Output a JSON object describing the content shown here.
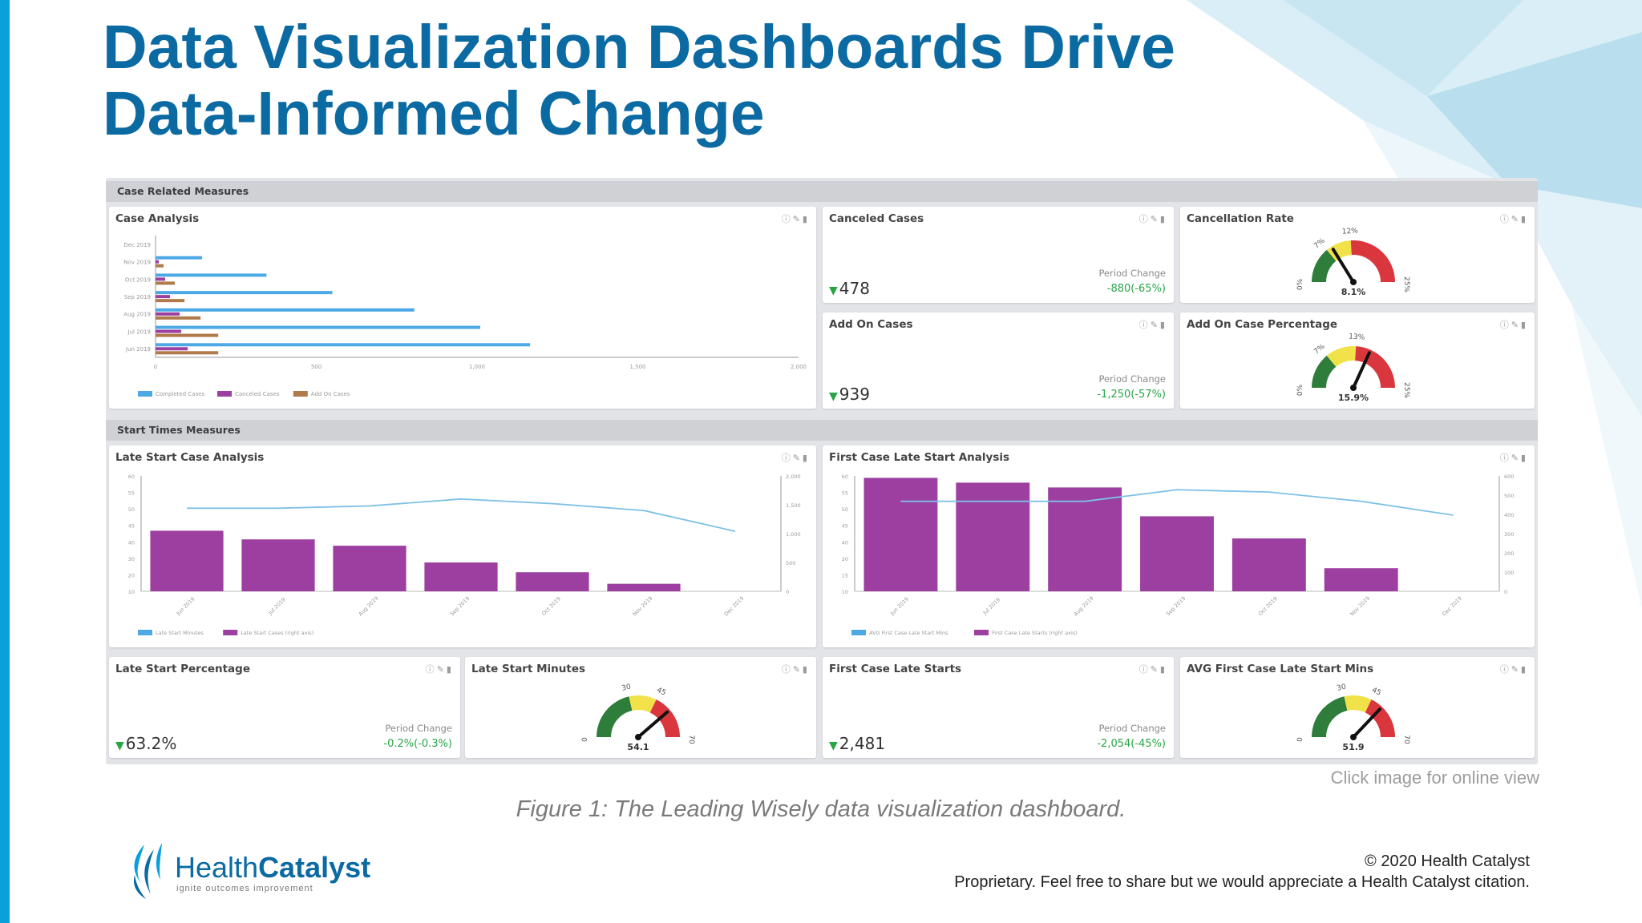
{
  "slide": {
    "title_line1": "Data Visualization Dashboards Drive",
    "title_line2": "Data-Informed Change",
    "click_note": "Click image for online view",
    "caption": "Figure 1: The Leading Wisely data visualization dashboard.",
    "copyright": "© 2020 Health Catalyst",
    "proprietary": "Proprietary. Feel free to share but we would appreciate a Health Catalyst citation.",
    "logo_text_1": "Health",
    "logo_text_2": "Catalyst",
    "logo_tagline": "ignite outcomes improvement",
    "colors": {
      "title": "#0b6aa2",
      "accent_bar": "#0aa0dc",
      "bar_blue": "#4ca9e6",
      "bar_purple": "#9c3fa0",
      "bar_brown": "#b07a4a",
      "green": "#27a645",
      "gauge_green": "#2e7d3a",
      "gauge_yellow": "#f2e24a",
      "gauge_red": "#d9363e"
    }
  },
  "dashboard": {
    "icons": [
      "info-icon",
      "edit-icon",
      "delete-icon"
    ],
    "icons_glyph": "ⓘ✎▮",
    "sections": {
      "case_related": "Case Related Measures",
      "start_times": "Start Times Measures"
    },
    "case_analysis": {
      "title": "Case Analysis"
    },
    "canceled_cases": {
      "title": "Canceled Cases",
      "value": "478",
      "period_label": "Period Change",
      "period_value": "-880(-65%)"
    },
    "cancellation_rate": {
      "title": "Cancellation Rate",
      "value": "8.1%",
      "ticks": [
        "0%",
        "7%",
        "12%",
        "25%"
      ],
      "min": 0,
      "max": 25,
      "reading": 8.1,
      "bands": [
        7,
        12
      ]
    },
    "add_on_cases": {
      "title": "Add On Cases",
      "value": "939",
      "period_label": "Period Change",
      "period_value": "-1,250(-57%)"
    },
    "add_on_case_percentage": {
      "title": "Add On Case Percentage",
      "value": "15.9%",
      "ticks": [
        "0%",
        "7%",
        "13%",
        "25%"
      ],
      "min": 0,
      "max": 25,
      "reading": 15.9,
      "bands": [
        7,
        13
      ]
    },
    "late_start_case_analysis": {
      "title": "Late Start Case Analysis"
    },
    "first_case_late_start_analysis": {
      "title": "First Case Late Start Analysis"
    },
    "late_start_percentage": {
      "title": "Late Start Percentage",
      "value": "63.2%",
      "period_label": "Period Change",
      "period_value": "-0.2%(-0.3%)"
    },
    "late_start_minutes": {
      "title": "Late Start Minutes",
      "value": "54.1",
      "ticks": [
        "0",
        "30",
        "45",
        "70"
      ],
      "min": 0,
      "max": 70,
      "reading": 54.1,
      "bands": [
        30,
        45
      ]
    },
    "first_case_late_starts": {
      "title": "First Case Late Starts",
      "value": "2,481",
      "period_label": "Period Change",
      "period_value": "-2,054(-45%)"
    },
    "avg_first_case_late_start_mins": {
      "title": "AVG First Case Late Start Mins",
      "value": "51.9",
      "ticks": [
        "0",
        "30",
        "45",
        "70"
      ],
      "min": 0,
      "max": 70,
      "reading": 51.9,
      "bands": [
        30,
        45
      ]
    }
  },
  "chart_data": [
    {
      "id": "case_analysis",
      "type": "bar",
      "orientation": "horizontal",
      "categories": [
        "Dec 2019",
        "Nov 2019",
        "Oct 2019",
        "Sep 2019",
        "Aug 2019",
        "Jul 2019",
        "Jun 2019"
      ],
      "series": [
        {
          "name": "Completed Cases",
          "values": [
            0,
            145,
            345,
            550,
            805,
            1010,
            1165
          ]
        },
        {
          "name": "Canceled Cases",
          "values": [
            0,
            10,
            30,
            45,
            75,
            80,
            100
          ]
        },
        {
          "name": "Add On Cases",
          "values": [
            0,
            25,
            60,
            90,
            140,
            195,
            195
          ]
        }
      ],
      "xticks": [
        "0",
        "500",
        "1,000",
        "1,500",
        "2,000"
      ],
      "xlim": [
        0,
        2000
      ],
      "legend": "bottom-left",
      "grid": false
    },
    {
      "id": "late_start_case_analysis",
      "type": "bar",
      "categories": [
        "Jun 2019",
        "Jul 2019",
        "Aug 2019",
        "Sep 2019",
        "Oct 2019",
        "Nov 2019",
        "Dec 2019"
      ],
      "series": [
        {
          "name": "Late Start Cases (right axis)",
          "type": "bar",
          "axis": "right",
          "values": [
            1050,
            900,
            790,
            500,
            330,
            130,
            0
          ]
        },
        {
          "name": "Late Start Minutes",
          "type": "line",
          "axis": "left",
          "values": [
            46,
            46,
            47,
            50,
            48,
            45,
            36
          ]
        }
      ],
      "yticks_left": [
        "10",
        "20",
        "30",
        "40",
        "45",
        "50",
        "55",
        "60"
      ],
      "yticks_right": [
        "0",
        "500",
        "1,000",
        "1,500",
        "2,000"
      ],
      "yleft_range": [
        10,
        60
      ],
      "yright_range": [
        0,
        2000
      ],
      "legend": "bottom-left",
      "grid": false
    },
    {
      "id": "first_case_late_start_analysis",
      "type": "bar",
      "categories": [
        "Jun 2019",
        "Jul 2019",
        "Aug 2019",
        "Sep 2019",
        "Oct 2019",
        "Nov 2019",
        "Dec 2019"
      ],
      "series": [
        {
          "name": "First Case Late Starts (right axis)",
          "type": "bar",
          "axis": "right",
          "values": [
            590,
            565,
            540,
            390,
            275,
            120,
            0
          ]
        },
        {
          "name": "AVG First Case Late Start Mins",
          "type": "line",
          "axis": "left",
          "values": [
            49,
            49,
            49,
            54,
            53,
            49,
            43
          ]
        }
      ],
      "yticks_left": [
        "10",
        "15",
        "20",
        "40",
        "45",
        "50",
        "55",
        "60"
      ],
      "yticks_right": [
        "0",
        "100",
        "200",
        "300",
        "400",
        "500",
        "600"
      ],
      "yleft_range": [
        10,
        60
      ],
      "yright_range": [
        0,
        600
      ],
      "legend": "bottom-left",
      "grid": false
    }
  ]
}
